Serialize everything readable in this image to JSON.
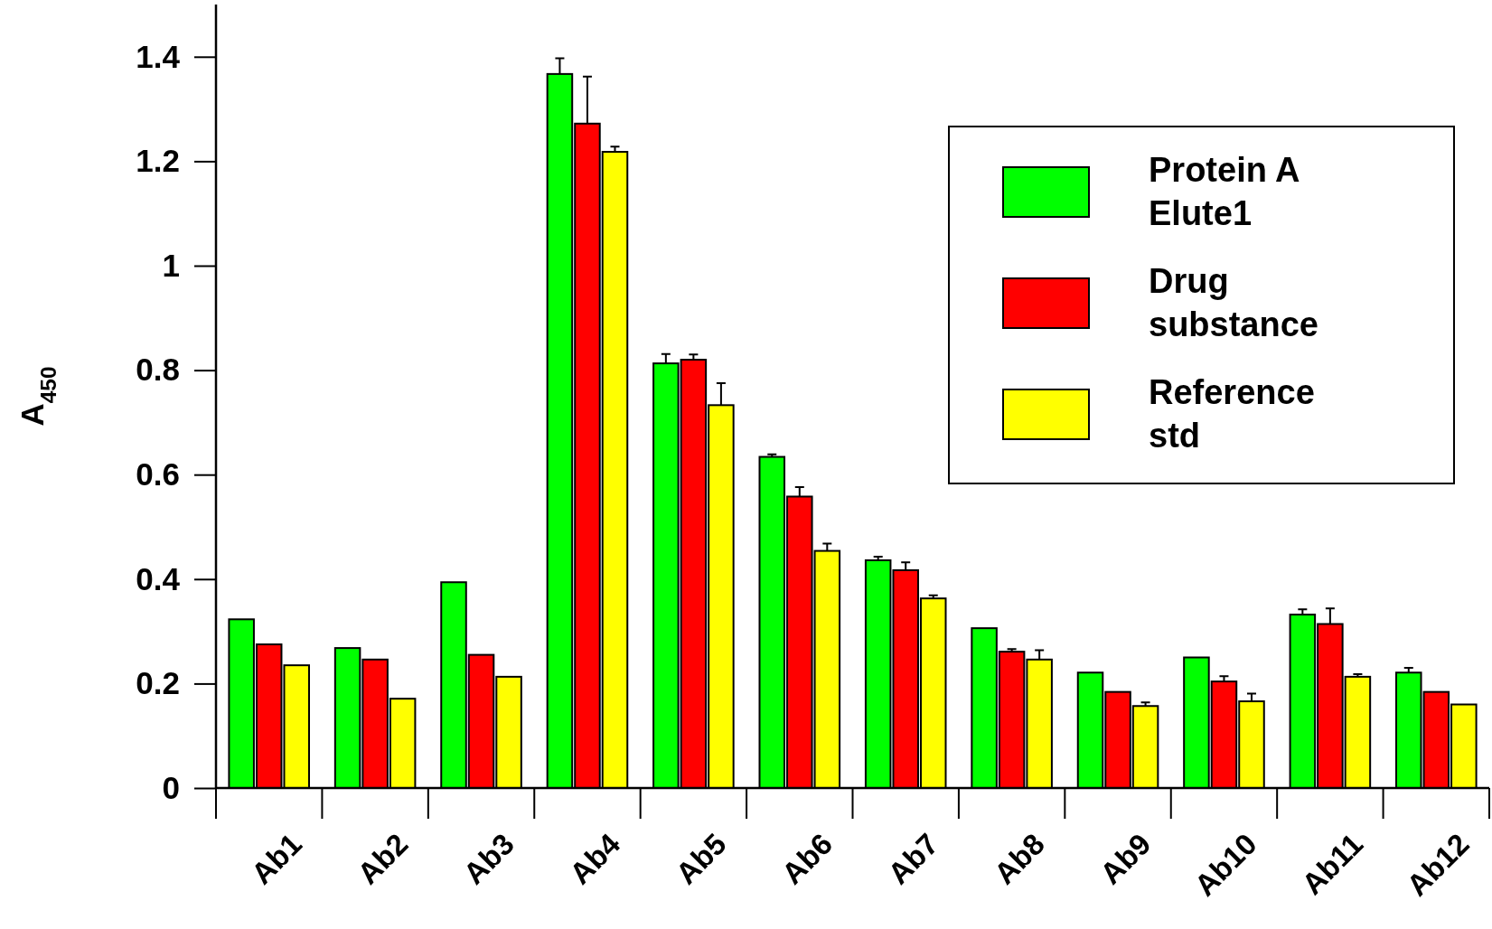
{
  "chart_data": {
    "type": "bar",
    "ylabel": "A$_{450}$",
    "categories": [
      "Ab1",
      "Ab2",
      "Ab3",
      "Ab4",
      "Ab5",
      "Ab6",
      "Ab7",
      "Ab8",
      "Ab9",
      "Ab10",
      "Ab11",
      "Ab12"
    ],
    "series": [
      {
        "name": "Protein A Elute1",
        "color": "#00ff00",
        "values": [
          0.323,
          0.268,
          0.394,
          1.367,
          0.813,
          0.634,
          0.436,
          0.306,
          0.221,
          0.25,
          0.332,
          0.221
        ],
        "errors": [
          null,
          null,
          null,
          [
            1.367,
            1.397
          ],
          [
            0.813,
            0.831
          ],
          [
            0.634,
            0.639
          ],
          [
            0.436,
            0.443
          ],
          null,
          null,
          null,
          [
            0.332,
            0.342
          ],
          [
            0.221,
            0.23
          ]
        ]
      },
      {
        "name": "Drug substance",
        "color": "#ff0000",
        "values": [
          0.275,
          0.246,
          0.255,
          1.272,
          0.82,
          0.558,
          0.417,
          0.261,
          0.184,
          0.204,
          0.314,
          0.184
        ],
        "errors": [
          null,
          null,
          null,
          [
            1.272,
            1.362
          ],
          [
            0.82,
            0.83
          ],
          [
            0.558,
            0.576
          ],
          [
            0.417,
            0.432
          ],
          [
            0.261,
            0.266
          ],
          null,
          [
            0.204,
            0.214
          ],
          [
            0.314,
            0.344
          ],
          null
        ]
      },
      {
        "name": "Reference std",
        "color": "#ffff00",
        "values": [
          0.235,
          0.171,
          0.213,
          1.218,
          0.733,
          0.454,
          0.363,
          0.246,
          0.157,
          0.166,
          0.213,
          0.16
        ],
        "errors": [
          null,
          null,
          null,
          [
            1.218,
            1.228
          ],
          [
            0.733,
            0.775
          ],
          [
            0.454,
            0.468
          ],
          [
            0.363,
            0.369
          ],
          [
            0.246,
            0.264
          ],
          [
            0.157,
            0.164
          ],
          [
            0.166,
            0.181
          ],
          [
            0.213,
            0.218
          ],
          null
        ]
      }
    ],
    "ylim": [
      0,
      1.5
    ],
    "yticks": [
      0,
      0.2,
      0.4,
      0.6,
      0.8,
      1,
      1.2,
      1.4
    ],
    "legend": "top right",
    "grid": false
  }
}
